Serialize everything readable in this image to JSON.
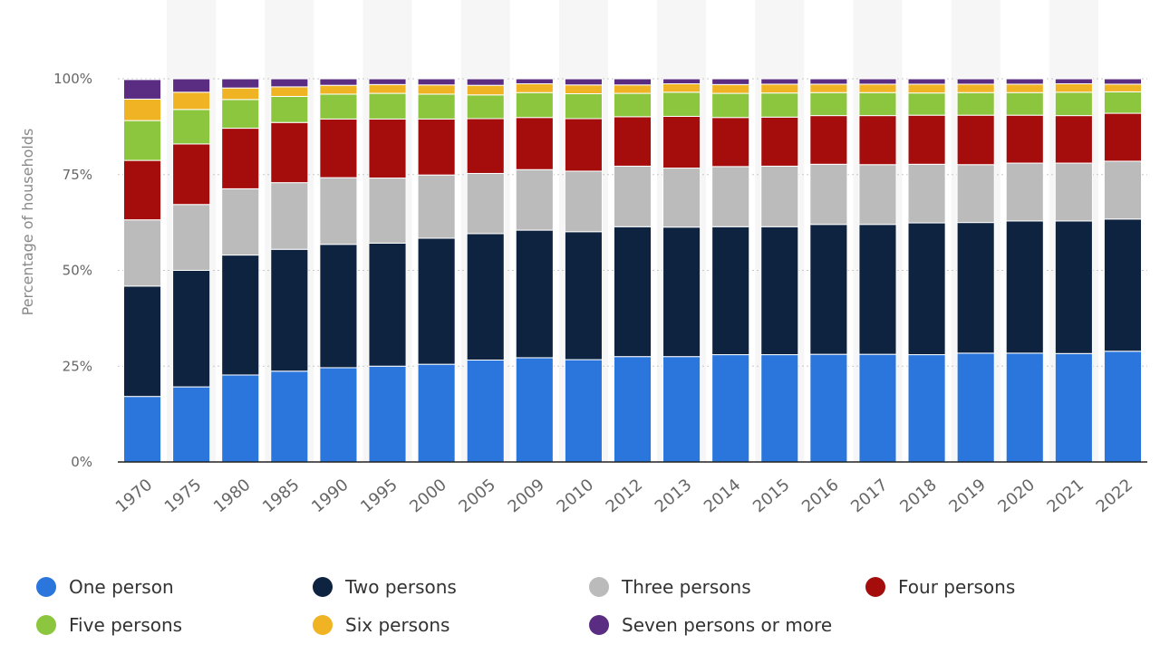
{
  "chart_data": {
    "type": "bar",
    "stacked": true,
    "title": "",
    "xlabel": "",
    "ylabel": "Percentage of households",
    "ylim": [
      0,
      100
    ],
    "y_ticks": [
      "0%",
      "25%",
      "50%",
      "75%",
      "100%"
    ],
    "grid": true,
    "legend_position": "bottom",
    "categories": [
      "1970",
      "1975",
      "1980",
      "1985",
      "1990",
      "1995",
      "2000",
      "2005",
      "2009",
      "2010",
      "2012",
      "2013",
      "2014",
      "2015",
      "2016",
      "2017",
      "2018",
      "2019",
      "2020",
      "2021",
      "2022"
    ],
    "series": [
      {
        "name": "One person",
        "color": "#2a76dd",
        "values": [
          17.1,
          19.6,
          22.7,
          23.7,
          24.6,
          25.0,
          25.5,
          26.6,
          27.2,
          26.7,
          27.5,
          27.5,
          28.0,
          28.0,
          28.1,
          28.1,
          28.0,
          28.4,
          28.4,
          28.3,
          28.9
        ]
      },
      {
        "name": "Two persons",
        "color": "#0e2340",
        "values": [
          28.8,
          30.4,
          31.3,
          31.8,
          32.2,
          32.1,
          32.9,
          33.0,
          33.3,
          33.4,
          33.9,
          33.8,
          33.4,
          33.4,
          33.9,
          33.9,
          34.4,
          34.1,
          34.5,
          34.6,
          34.5
        ]
      },
      {
        "name": "Three persons",
        "color": "#bbbbbb",
        "values": [
          17.3,
          17.2,
          17.3,
          17.4,
          17.4,
          17.0,
          16.5,
          15.7,
          15.8,
          15.8,
          15.8,
          15.4,
          15.7,
          15.8,
          15.7,
          15.6,
          15.3,
          15.1,
          15.1,
          15.1,
          15.1
        ]
      },
      {
        "name": "Four persons",
        "color": "#a50d0d",
        "values": [
          15.5,
          15.8,
          15.8,
          15.7,
          15.3,
          15.4,
          14.6,
          14.3,
          13.6,
          13.7,
          12.9,
          13.5,
          12.8,
          12.8,
          12.7,
          12.8,
          12.8,
          12.9,
          12.5,
          12.4,
          12.5
        ]
      },
      {
        "name": "Five persons",
        "color": "#8cc63e",
        "values": [
          10.4,
          9.0,
          7.5,
          6.8,
          6.5,
          6.7,
          6.5,
          6.2,
          6.5,
          6.5,
          6.1,
          6.3,
          6.3,
          6.3,
          6.0,
          6.0,
          5.8,
          5.9,
          5.9,
          6.1,
          5.6
        ]
      },
      {
        "name": "Six persons",
        "color": "#f0b323",
        "values": [
          5.6,
          4.5,
          3.0,
          2.5,
          2.3,
          2.3,
          2.4,
          2.5,
          2.3,
          2.3,
          2.2,
          2.2,
          2.3,
          2.3,
          2.2,
          2.2,
          2.3,
          2.2,
          2.2,
          2.2,
          2.0
        ]
      },
      {
        "name": "Seven persons or more",
        "color": "#5b2d82",
        "values": [
          5.1,
          3.5,
          2.4,
          2.1,
          1.7,
          1.5,
          1.6,
          1.7,
          1.3,
          1.6,
          1.6,
          1.3,
          1.5,
          1.4,
          1.4,
          1.4,
          1.4,
          1.4,
          1.4,
          1.3,
          1.4
        ]
      }
    ]
  }
}
